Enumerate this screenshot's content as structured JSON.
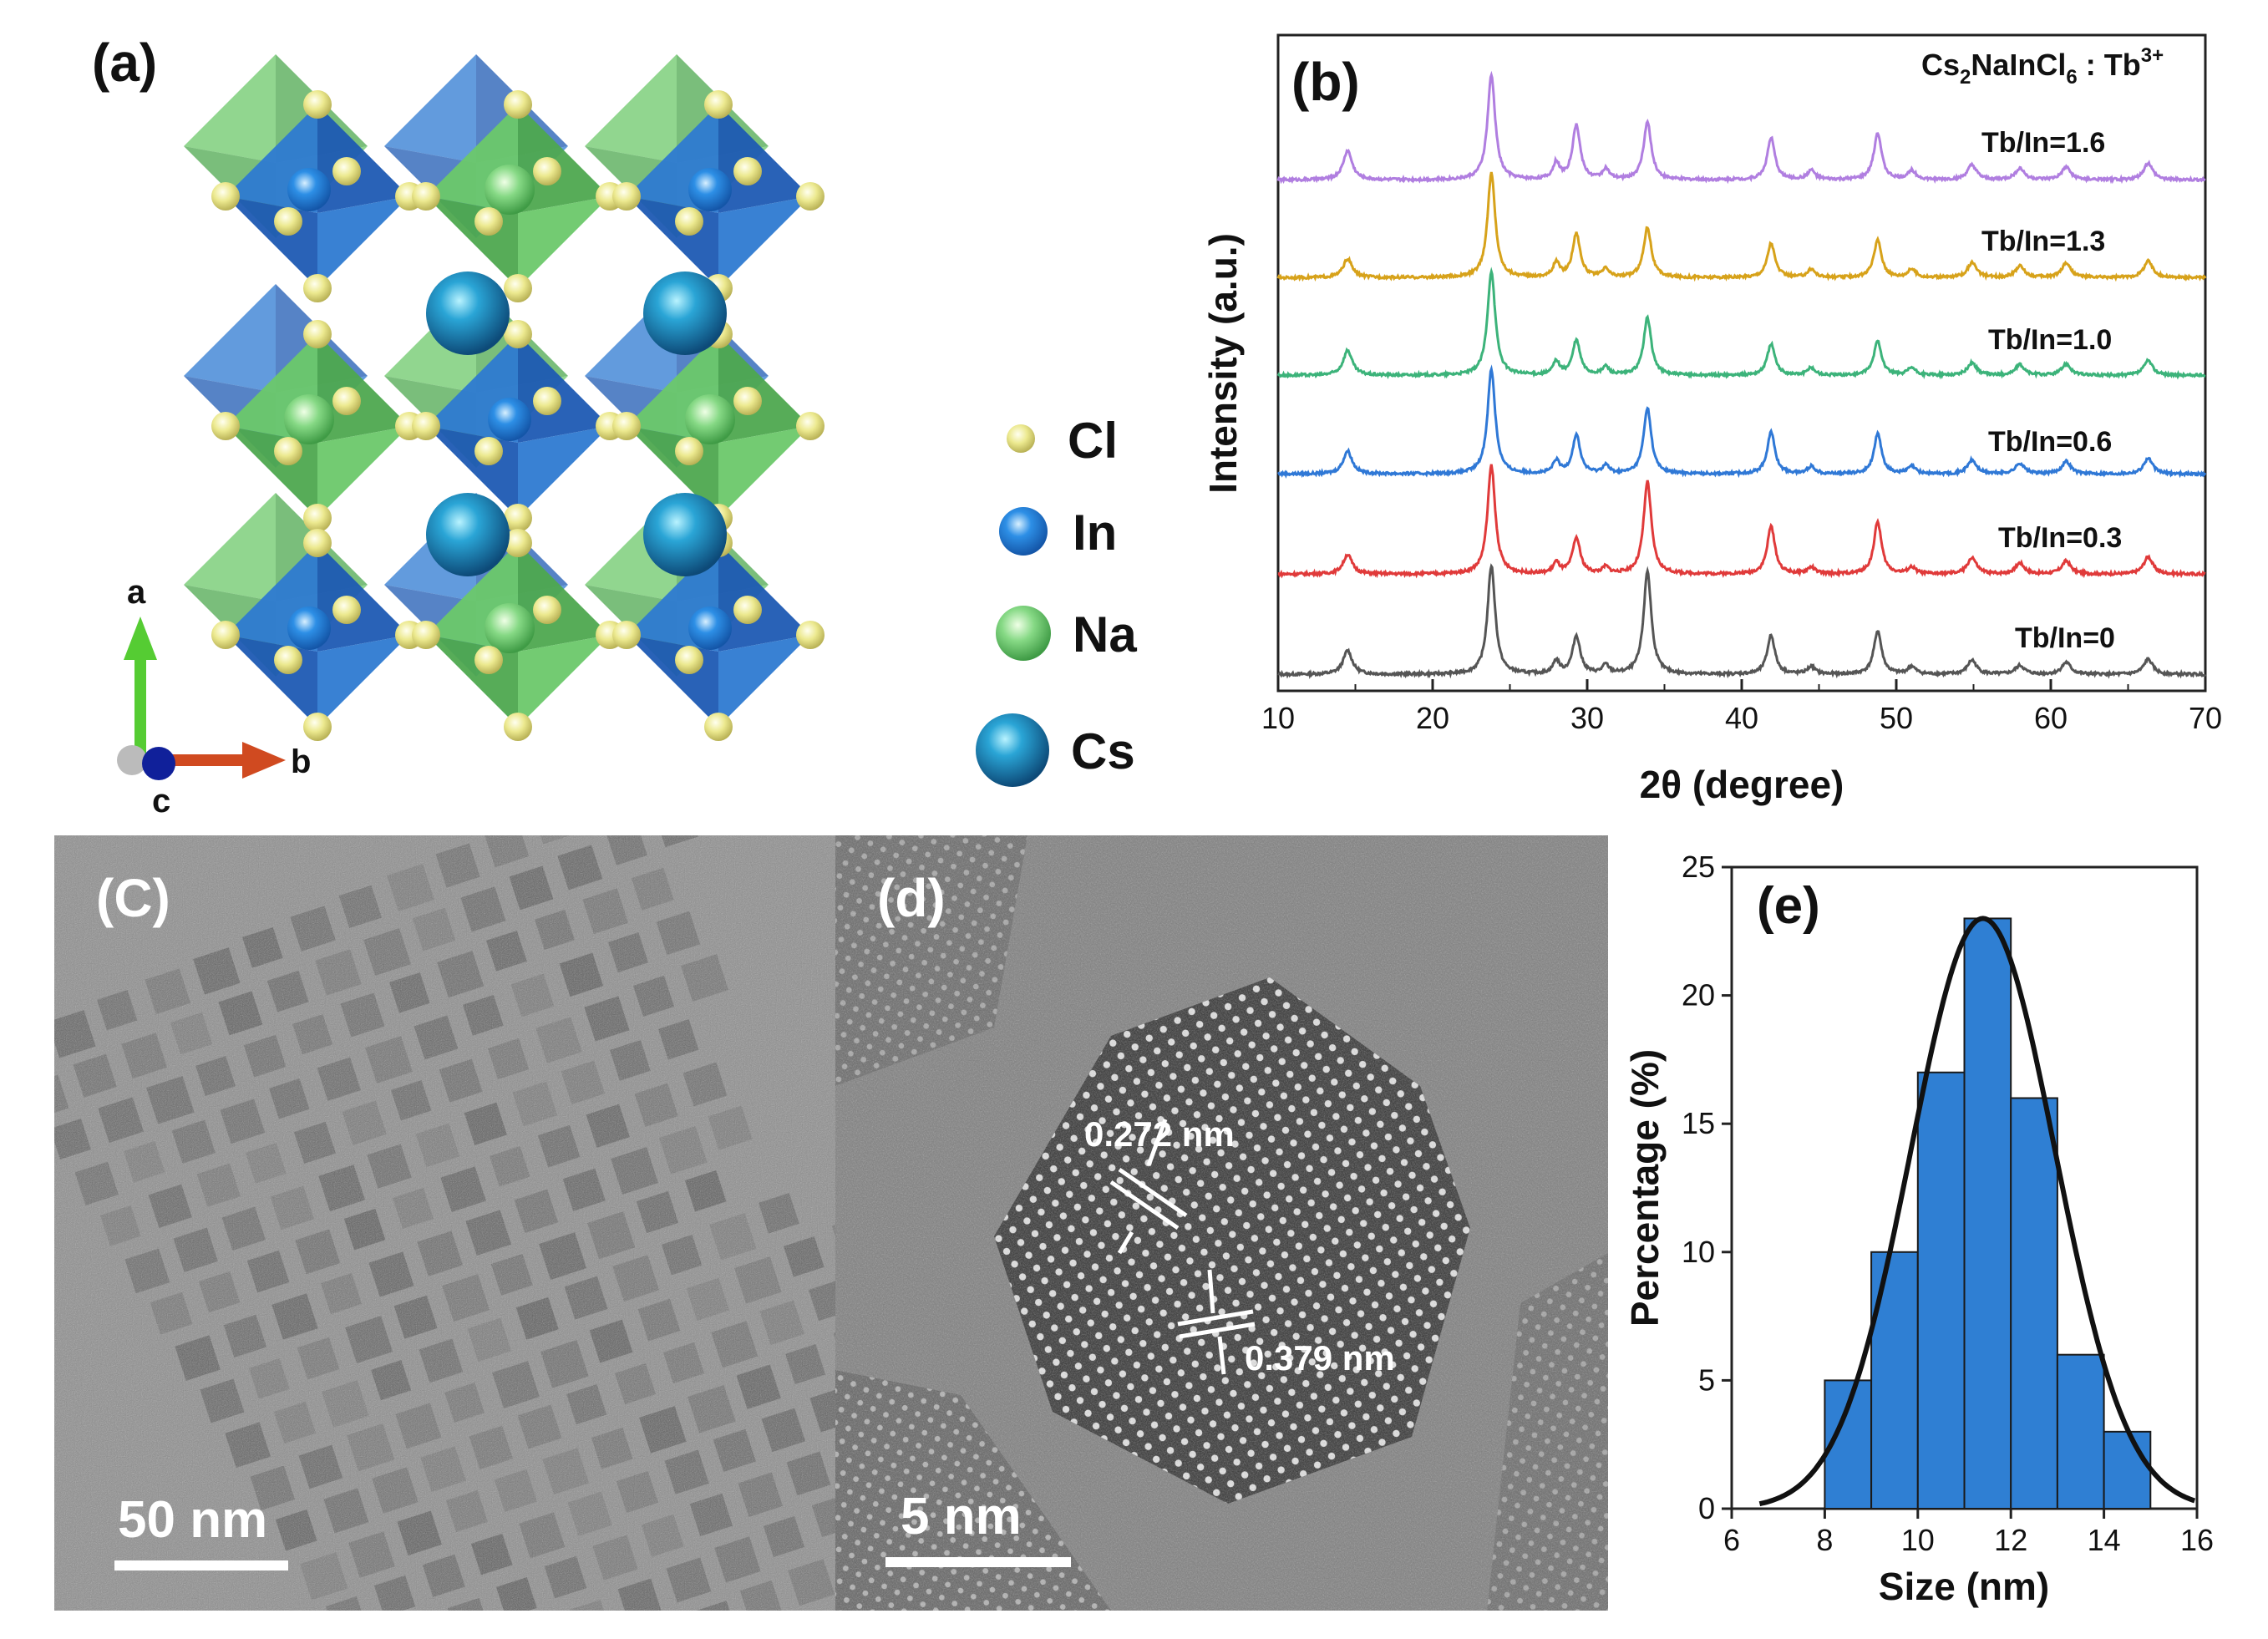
{
  "figure": {
    "panel_a": {
      "label": "(a)",
      "legend": [
        {
          "name": "Cl",
          "color": "#e8e58c"
        },
        {
          "name": "In",
          "color": "#2a8fe0"
        },
        {
          "name": "Na",
          "color": "#7ad67a"
        },
        {
          "name": "Cs",
          "color": "#1f6fa8"
        }
      ],
      "axes": {
        "a": "a",
        "b": "b",
        "c": "c"
      }
    },
    "panel_b": {
      "label": "(b)"
    },
    "panel_c": {
      "label": "(C)",
      "scale_bar": "50 nm"
    },
    "panel_d": {
      "label": "(d)",
      "scale_bar": "5 nm",
      "spacing_1": "0.272 nm",
      "spacing_2": "0.379 nm"
    },
    "panel_e": {
      "label": "(e)"
    }
  },
  "chart_data": [
    {
      "id": "xrd",
      "type": "line",
      "title": "Cs2NaInCl6 : Tb3+",
      "title_parts": {
        "base": "Cs",
        "sub1": "2",
        "mid": "NaInCl",
        "sub2": "6",
        "sep": " : Tb",
        "sup": "3+"
      },
      "xlabel": "2θ (degree)",
      "ylabel": "Intensity (a.u.)",
      "xlim": [
        10,
        70
      ],
      "xticks": [
        10,
        20,
        30,
        40,
        50,
        60,
        70
      ],
      "peaks": [
        {
          "pos": 14.5,
          "width": 0.35
        },
        {
          "pos": 23.8,
          "width": 0.3
        },
        {
          "pos": 28.0,
          "width": 0.25
        },
        {
          "pos": 29.3,
          "width": 0.3
        },
        {
          "pos": 31.2,
          "width": 0.25
        },
        {
          "pos": 33.9,
          "width": 0.3
        },
        {
          "pos": 41.9,
          "width": 0.3
        },
        {
          "pos": 44.5,
          "width": 0.3
        },
        {
          "pos": 48.8,
          "width": 0.3
        },
        {
          "pos": 51.0,
          "width": 0.3
        },
        {
          "pos": 54.9,
          "width": 0.35
        },
        {
          "pos": 58.0,
          "width": 0.35
        },
        {
          "pos": 61.0,
          "width": 0.35
        },
        {
          "pos": 66.3,
          "width": 0.35
        }
      ],
      "series": [
        {
          "name": "Tb/In=0",
          "color": "#555555",
          "intensities": [
            0.22,
            1.0,
            0.12,
            0.35,
            0.08,
            0.95,
            0.36,
            0.07,
            0.4,
            0.07,
            0.13,
            0.08,
            0.11,
            0.14
          ]
        },
        {
          "name": "Tb/In=0.3",
          "color": "#e03a3a",
          "intensities": [
            0.18,
            1.0,
            0.1,
            0.33,
            0.06,
            0.85,
            0.44,
            0.06,
            0.48,
            0.06,
            0.15,
            0.1,
            0.12,
            0.16
          ]
        },
        {
          "name": "Tb/In=0.6",
          "color": "#2f78d6",
          "intensities": [
            0.22,
            1.0,
            0.12,
            0.37,
            0.08,
            0.63,
            0.4,
            0.07,
            0.38,
            0.07,
            0.13,
            0.1,
            0.12,
            0.15
          ]
        },
        {
          "name": "Tb/In=1.0",
          "color": "#3cb37a",
          "intensities": [
            0.24,
            1.0,
            0.13,
            0.33,
            0.08,
            0.55,
            0.3,
            0.07,
            0.33,
            0.07,
            0.12,
            0.1,
            0.11,
            0.14
          ]
        },
        {
          "name": "Tb/In=1.3",
          "color": "#d7a21a",
          "intensities": [
            0.18,
            1.0,
            0.14,
            0.42,
            0.08,
            0.48,
            0.33,
            0.08,
            0.36,
            0.08,
            0.14,
            0.11,
            0.14,
            0.16
          ]
        },
        {
          "name": "Tb/In=1.6",
          "color": "#b07ee0",
          "intensities": [
            0.28,
            1.0,
            0.16,
            0.52,
            0.1,
            0.55,
            0.4,
            0.09,
            0.45,
            0.09,
            0.14,
            0.11,
            0.12,
            0.16
          ]
        }
      ]
    },
    {
      "id": "size",
      "type": "bar",
      "xlabel": "Size (nm)",
      "ylabel": "Percentage (%)",
      "xlim": [
        6,
        16
      ],
      "ylim": [
        0,
        25
      ],
      "xticks": [
        6,
        8,
        10,
        12,
        14,
        16
      ],
      "yticks": [
        0,
        5,
        10,
        15,
        20,
        25
      ],
      "bin_width": 1,
      "bins": [
        {
          "start": 8,
          "value": 5
        },
        {
          "start": 9,
          "value": 10
        },
        {
          "start": 10,
          "value": 17
        },
        {
          "start": 11,
          "value": 23
        },
        {
          "start": 12,
          "value": 16
        },
        {
          "start": 13,
          "value": 6
        },
        {
          "start": 14,
          "value": 3
        }
      ],
      "bar_color": "#2f7fd3",
      "fit": {
        "type": "gaussian",
        "center": 11.4,
        "sigma": 1.55,
        "amplitude": 23
      }
    }
  ]
}
